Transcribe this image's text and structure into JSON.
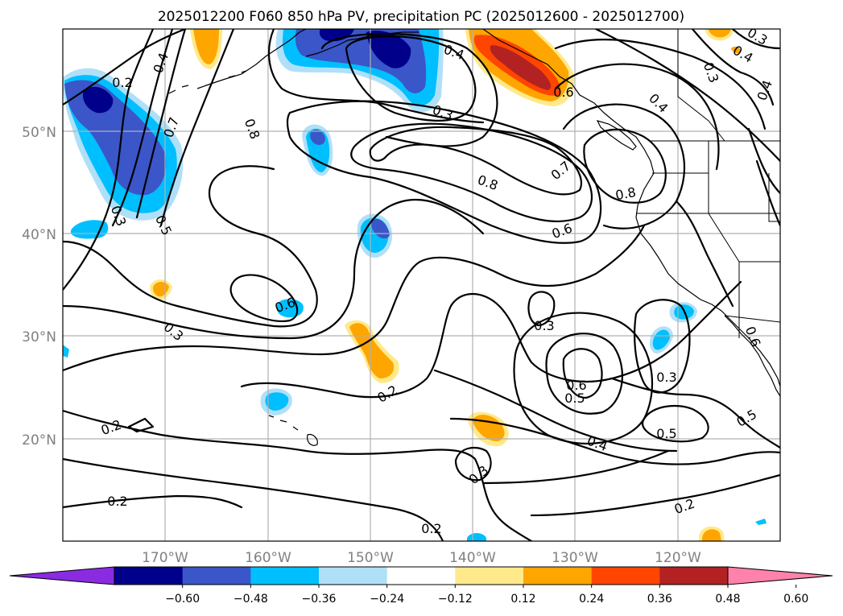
{
  "title": "2025012200 F060 850 hPa PV, precipitation PC (2025012600 - 2025012700)",
  "map": {
    "lon_ticks": [
      "170°W",
      "160°W",
      "150°W",
      "140°W",
      "130°W",
      "120°W"
    ],
    "lat_ticks": [
      "50°N",
      "40°N",
      "30°N",
      "20°N"
    ],
    "gridlines": true,
    "projection": "PlateCarree"
  },
  "contour_labels": [
    {
      "id": "c1",
      "text": "0.2"
    },
    {
      "id": "c2",
      "text": "0.4"
    },
    {
      "id": "c3",
      "text": "0.7"
    },
    {
      "id": "c4",
      "text": "0.8"
    },
    {
      "id": "c5",
      "text": "0.3"
    },
    {
      "id": "c6",
      "text": "0.5"
    },
    {
      "id": "c7",
      "text": "0.4"
    },
    {
      "id": "c8",
      "text": "0.3"
    },
    {
      "id": "c9",
      "text": "0.6"
    },
    {
      "id": "c10",
      "text": "0.8"
    },
    {
      "id": "c11",
      "text": "0.7"
    },
    {
      "id": "c12",
      "text": "0.8"
    },
    {
      "id": "c13",
      "text": "0.6"
    },
    {
      "id": "c14",
      "text": "0.4"
    },
    {
      "id": "c15",
      "text": "0.3"
    },
    {
      "id": "c16",
      "text": "0.4"
    },
    {
      "id": "c17",
      "text": "0.3"
    },
    {
      "id": "c18",
      "text": "0.5"
    },
    {
      "id": "c19",
      "text": "0.6"
    },
    {
      "id": "c20",
      "text": "0.3"
    },
    {
      "id": "c21",
      "text": "0.2"
    },
    {
      "id": "c22",
      "text": "0.3"
    },
    {
      "id": "c23",
      "text": "0.6"
    },
    {
      "id": "c24",
      "text": "0.5"
    },
    {
      "id": "c25",
      "text": "0.3"
    },
    {
      "id": "c26",
      "text": "0.5"
    },
    {
      "id": "c27",
      "text": "0.4"
    },
    {
      "id": "c28",
      "text": "0.4"
    },
    {
      "id": "c29",
      "text": "0.3"
    },
    {
      "id": "c30",
      "text": "0.2"
    },
    {
      "id": "c31",
      "text": "0.2"
    },
    {
      "id": "c32",
      "text": "0.2"
    },
    {
      "id": "c33",
      "text": "0.2"
    },
    {
      "id": "c34",
      "text": "0.6"
    }
  ],
  "colorbar": {
    "ticks": [
      "−0.60",
      "−0.48",
      "−0.36",
      "−0.24",
      "−0.12",
      "0.12",
      "0.24",
      "0.36",
      "0.48",
      "0.60"
    ],
    "colors": [
      "#8a2be2",
      "#00008b",
      "#3a56c8",
      "#00bfff",
      "#b0e0f8",
      "#ffffff",
      "#ffe98a",
      "#ffa500",
      "#ff4500",
      "#b22222",
      "#ff82ab"
    ],
    "extend": "both"
  }
}
